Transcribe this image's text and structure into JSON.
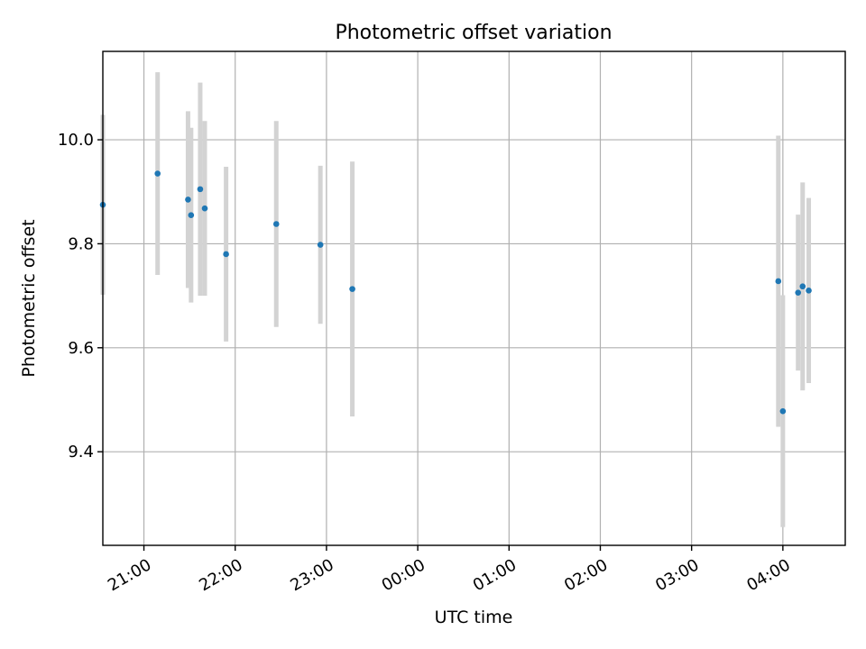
{
  "chart_data": {
    "type": "scatter",
    "title": "Photometric offset variation",
    "xlabel": "UTC time",
    "ylabel": "Photometric offset",
    "x_axis_type": "time",
    "xlim": [
      "20:33",
      "04:41"
    ],
    "ylim": [
      9.22,
      10.17
    ],
    "grid": true,
    "x_ticks": [
      "21:00",
      "22:00",
      "23:00",
      "00:00",
      "01:00",
      "02:00",
      "03:00",
      "04:00"
    ],
    "y_ticks": [
      9.4,
      9.6,
      9.8,
      10.0
    ],
    "y_tick_labels": [
      "9.4",
      "9.6",
      "9.8",
      "10.0"
    ],
    "colors": {
      "points": "#1f77b4",
      "error_bars": "#d3d3d3"
    },
    "series": [
      {
        "points": [
          {
            "x": "20:33",
            "y": 9.875,
            "err": 0.173
          },
          {
            "x": "21:09",
            "y": 9.935,
            "err": 0.195
          },
          {
            "x": "21:29",
            "y": 9.885,
            "err": 0.17
          },
          {
            "x": "21:31",
            "y": 9.855,
            "err": 0.168
          },
          {
            "x": "21:37",
            "y": 9.905,
            "err": 0.205
          },
          {
            "x": "21:40",
            "y": 9.868,
            "err": 0.168
          },
          {
            "x": "21:54",
            "y": 9.78,
            "err": 0.168
          },
          {
            "x": "22:27",
            "y": 9.838,
            "err": 0.198
          },
          {
            "x": "22:56",
            "y": 9.798,
            "err": 0.152
          },
          {
            "x": "23:17",
            "y": 9.713,
            "err": 0.245
          },
          {
            "x": "03:57",
            "y": 9.728,
            "err": 0.28
          },
          {
            "x": "04:00",
            "y": 9.478,
            "err": 0.223
          },
          {
            "x": "04:10",
            "y": 9.706,
            "err": 0.15
          },
          {
            "x": "04:13",
            "y": 9.718,
            "err": 0.2
          },
          {
            "x": "04:17",
            "y": 9.71,
            "err": 0.178
          }
        ]
      }
    ]
  }
}
